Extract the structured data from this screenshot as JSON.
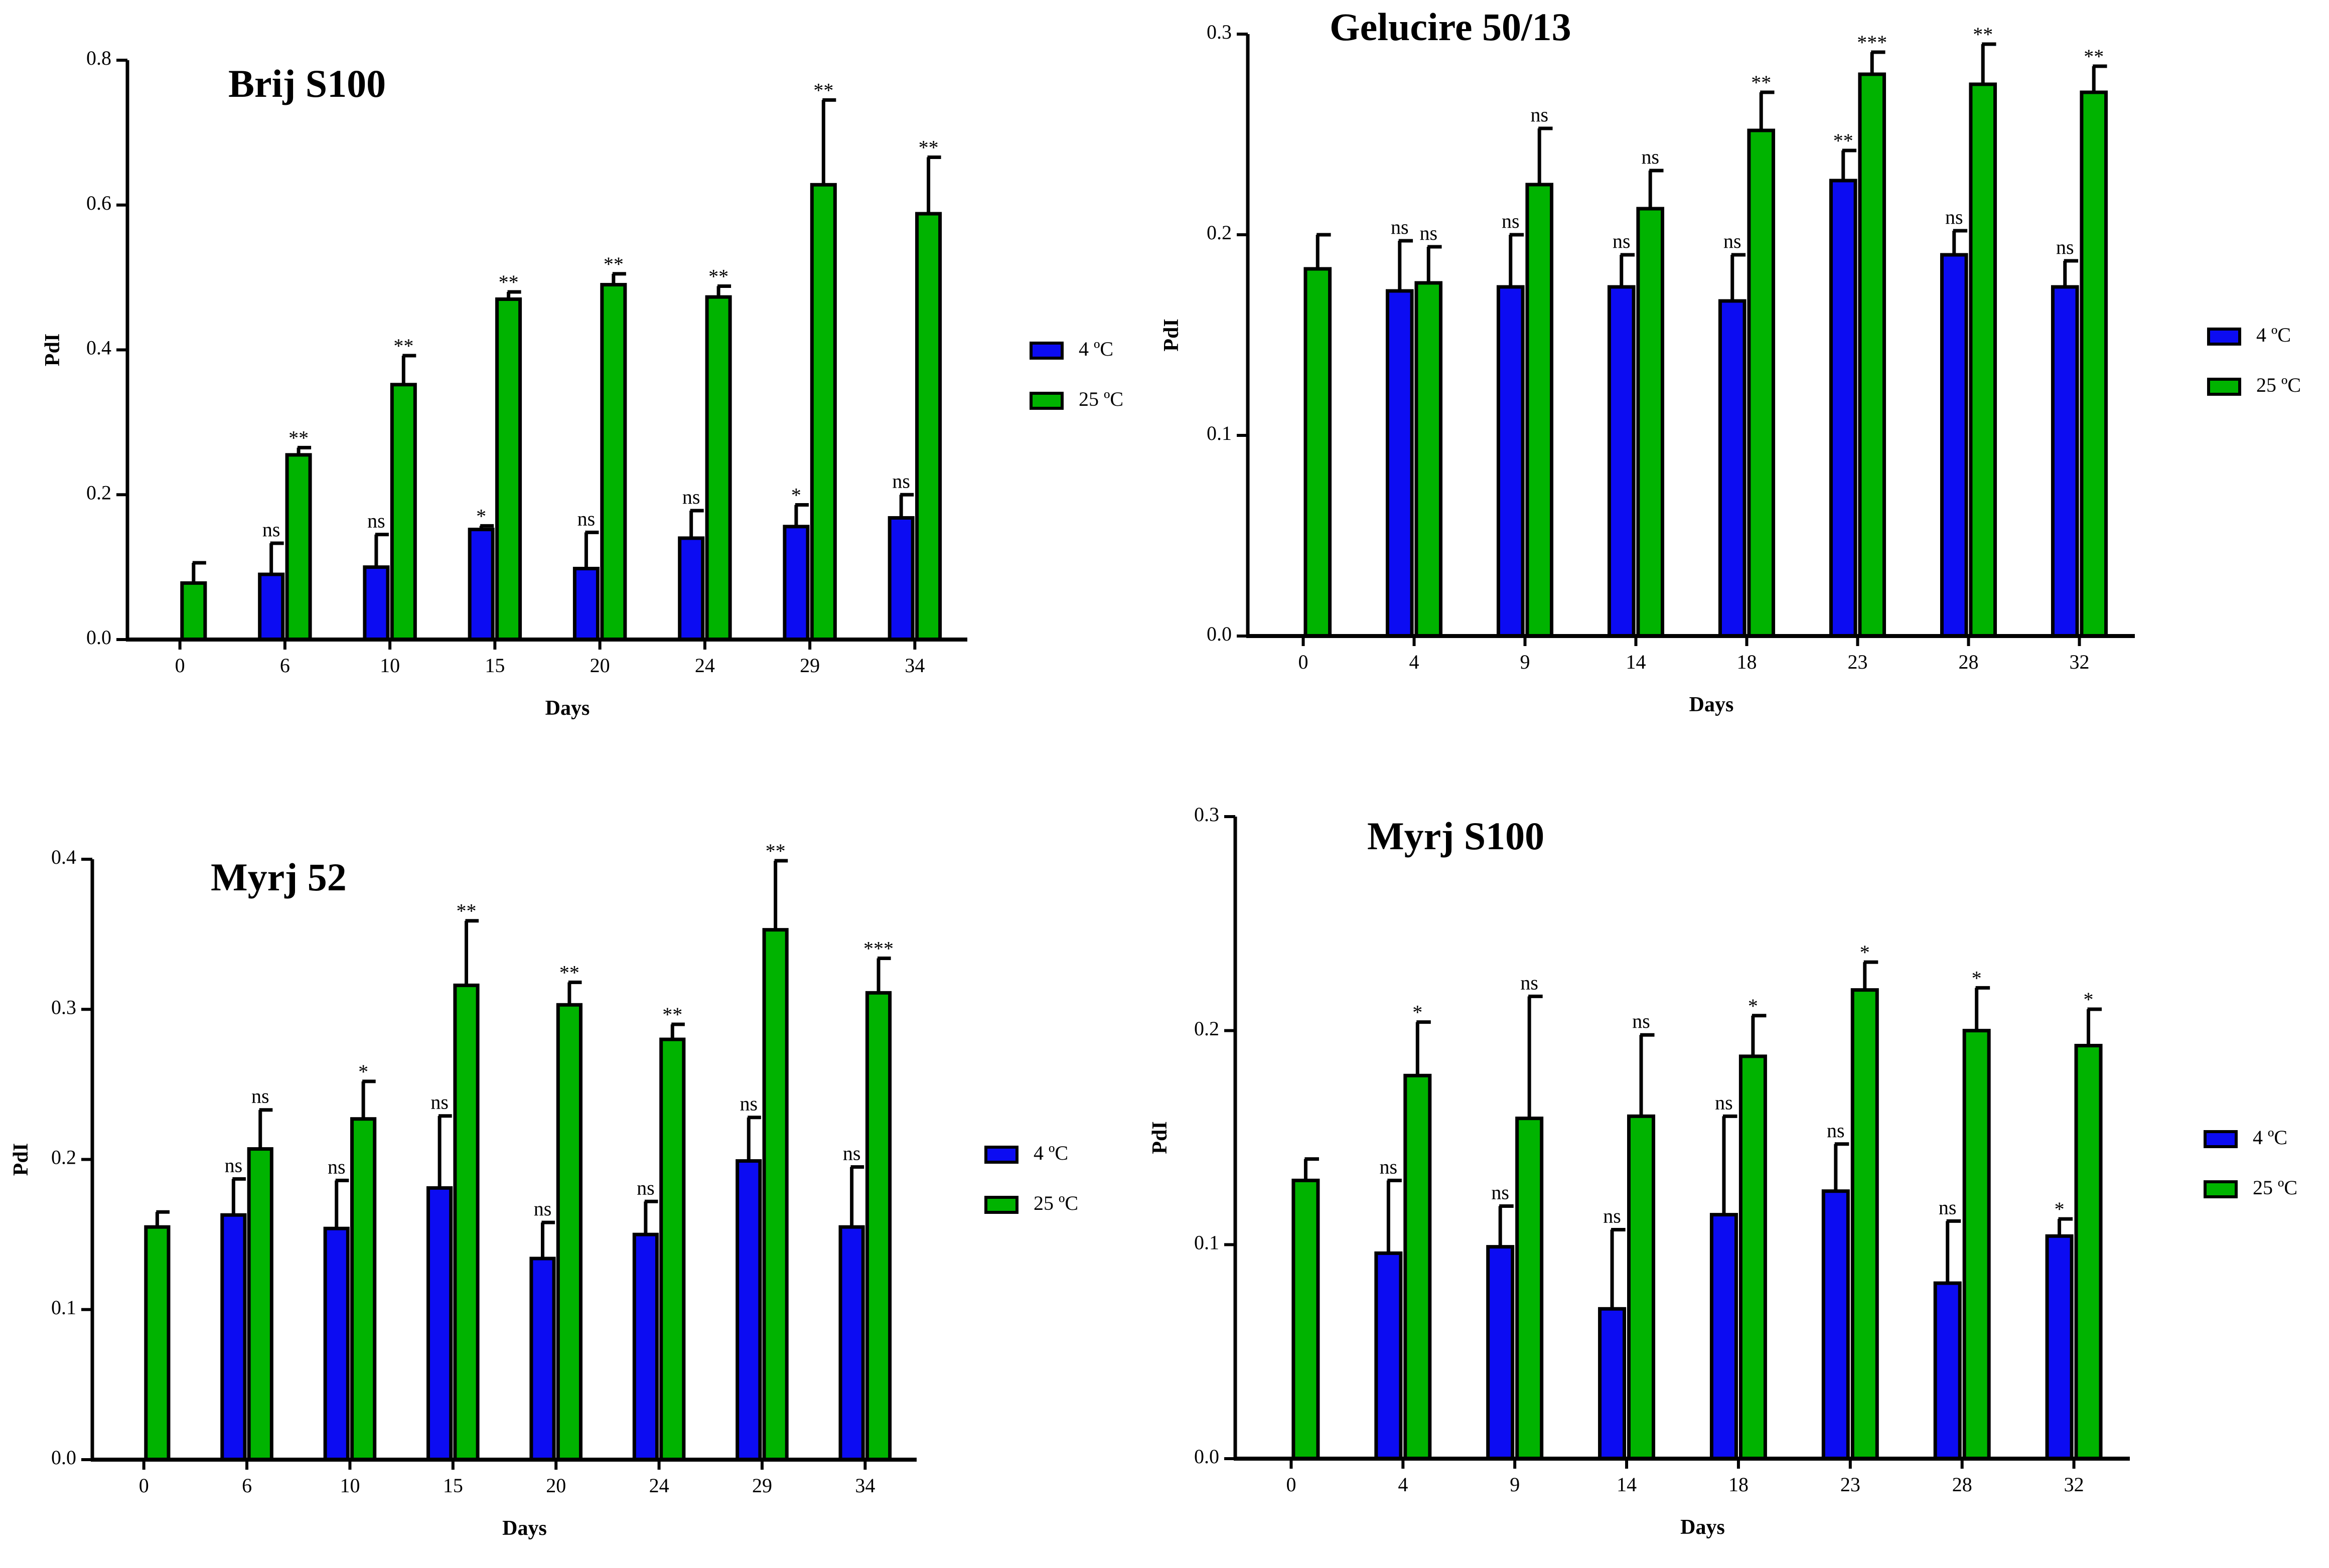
{
  "legend": {
    "cold_label": "4 ºC",
    "warm_label": "25 ºC"
  },
  "colors": {
    "cold": "#0c0cf2",
    "warm": "#00b300",
    "axis": "#000000"
  },
  "chart_data": [
    {
      "type": "bar",
      "title": "Brij S100",
      "xlabel": "Days",
      "ylabel": "PdI",
      "ylim": [
        0,
        0.8
      ],
      "yticks": [
        "0.0",
        "0.2",
        "0.4",
        "0.6",
        "0.8"
      ],
      "categories": [
        "0",
        "6",
        "10",
        "15",
        "20",
        "24",
        "29",
        "34"
      ],
      "series": [
        {
          "name": "4 ºC",
          "values": [
            null,
            0.09,
            0.1,
            0.152,
            0.098,
            0.14,
            0.156,
            0.168
          ],
          "errors": [
            null,
            0.043,
            0.045,
            0.005,
            0.05,
            0.038,
            0.03,
            0.032
          ],
          "annotations": [
            "",
            "ns",
            "ns",
            "*",
            "ns",
            "ns",
            "*",
            "ns"
          ]
        },
        {
          "name": "25 ºC",
          "values": [
            0.078,
            0.255,
            0.352,
            0.47,
            0.49,
            0.473,
            0.628,
            0.588
          ],
          "errors": [
            0.028,
            0.01,
            0.04,
            0.01,
            0.015,
            0.015,
            0.117,
            0.078
          ],
          "annotations": [
            "",
            "**",
            "**",
            "**",
            "**",
            "**",
            "**",
            "**"
          ]
        }
      ]
    },
    {
      "type": "bar",
      "title": "Gelucire 50/13",
      "xlabel": "Days",
      "ylabel": "PdI",
      "ylim": [
        0,
        0.3
      ],
      "yticks": [
        "0.0",
        "0.1",
        "0.2",
        "0.3"
      ],
      "categories": [
        "0",
        "4",
        "9",
        "14",
        "18",
        "23",
        "28",
        "32"
      ],
      "series": [
        {
          "name": "4 ºC",
          "values": [
            null,
            0.172,
            0.174,
            0.174,
            0.167,
            0.227,
            0.19,
            0.174
          ],
          "errors": [
            null,
            0.025,
            0.026,
            0.016,
            0.023,
            0.015,
            0.012,
            0.013
          ],
          "annotations": [
            "",
            "ns",
            "ns",
            "ns",
            "ns",
            "**",
            "ns",
            "ns"
          ]
        },
        {
          "name": "25 ºC",
          "values": [
            0.183,
            0.176,
            0.225,
            0.213,
            0.252,
            0.28,
            0.275,
            0.271
          ],
          "errors": [
            0.017,
            0.018,
            0.028,
            0.019,
            0.019,
            0.011,
            0.02,
            0.013
          ],
          "annotations": [
            "",
            "ns",
            "ns",
            "ns",
            "**",
            "***",
            "**",
            "**"
          ]
        }
      ]
    },
    {
      "type": "bar",
      "title": "Myrj 52",
      "xlabel": "Days",
      "ylabel": "PdI",
      "ylim": [
        0,
        0.4
      ],
      "yticks": [
        "0.0",
        "0.1",
        "0.2",
        "0.3",
        "0.4"
      ],
      "categories": [
        "0",
        "6",
        "10",
        "15",
        "20",
        "24",
        "29",
        "34"
      ],
      "series": [
        {
          "name": "4 ºC",
          "values": [
            null,
            0.163,
            0.154,
            0.181,
            0.134,
            0.15,
            0.199,
            0.155
          ],
          "errors": [
            null,
            0.024,
            0.032,
            0.048,
            0.024,
            0.022,
            0.029,
            0.04
          ],
          "annotations": [
            "",
            "ns",
            "ns",
            "ns",
            "ns",
            "ns",
            "ns",
            "ns"
          ]
        },
        {
          "name": "25 ºC",
          "values": [
            0.155,
            0.207,
            0.227,
            0.316,
            0.303,
            0.28,
            0.353,
            0.311
          ],
          "errors": [
            0.01,
            0.026,
            0.025,
            0.043,
            0.015,
            0.01,
            0.046,
            0.023
          ],
          "annotations": [
            "",
            "ns",
            "*",
            "**",
            "**",
            "**",
            "**",
            "***"
          ]
        }
      ]
    },
    {
      "type": "bar",
      "title": "Myrj S100",
      "xlabel": "Days",
      "ylabel": "PdI",
      "ylim": [
        0,
        0.3
      ],
      "yticks": [
        "0.0",
        "0.1",
        "0.2",
        "0.3"
      ],
      "categories": [
        "0",
        "4",
        "9",
        "14",
        "18",
        "23",
        "28",
        "32"
      ],
      "series": [
        {
          "name": "4 ºC",
          "values": [
            null,
            0.096,
            0.099,
            0.07,
            0.114,
            0.125,
            0.082,
            0.104
          ],
          "errors": [
            null,
            0.034,
            0.019,
            0.037,
            0.046,
            0.022,
            0.029,
            0.008
          ],
          "annotations": [
            "",
            "ns",
            "ns",
            "ns",
            "ns",
            "ns",
            "ns",
            "*"
          ]
        },
        {
          "name": "25 ºC",
          "values": [
            0.13,
            0.179,
            0.159,
            0.16,
            0.188,
            0.219,
            0.2,
            0.193
          ],
          "errors": [
            0.01,
            0.025,
            0.057,
            0.038,
            0.019,
            0.013,
            0.02,
            0.017
          ],
          "annotations": [
            "",
            "*",
            "ns",
            "ns",
            "*",
            "*",
            "*",
            "*"
          ]
        }
      ]
    }
  ]
}
